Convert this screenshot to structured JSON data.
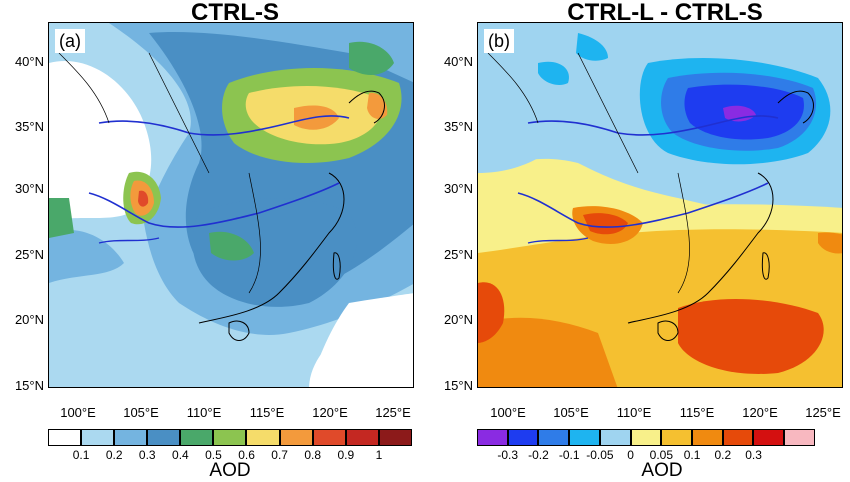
{
  "panels": [
    {
      "title": "CTRL-S",
      "label": "(a)",
      "colorbar_label": "AOD",
      "colorbar_ticks": [
        "0.1",
        "0.2",
        "0.3",
        "0.4",
        "0.5",
        "0.6",
        "0.7",
        "0.8",
        "0.9",
        "1"
      ],
      "colorbar_colors": [
        "#ffffff",
        "#abd9f0",
        "#74b4e0",
        "#4a8fc4",
        "#4aa86a",
        "#8cc450",
        "#f5dc6a",
        "#f39a3c",
        "#e04a2a",
        "#c42822",
        "#8c1a1a"
      ]
    },
    {
      "title": "CTRL-L - CTRL-S",
      "label": "(b)",
      "colorbar_label": "AOD",
      "colorbar_ticks": [
        "-0.3",
        "-0.2",
        "-0.1",
        "-0.05",
        "0",
        "0.05",
        "0.1",
        "0.2",
        "0.3"
      ],
      "colorbar_colors": [
        "#8a2be2",
        "#1e3cf0",
        "#2f7ce8",
        "#1eb4f0",
        "#9fd4f0",
        "#f8f08a",
        "#f5c030",
        "#f08a10",
        "#e64a0a",
        "#d41010",
        "#f8b8c0"
      ]
    }
  ],
  "latitude_labels": [
    "40°N",
    "35°N",
    "30°N",
    "25°N",
    "20°N",
    "15°N"
  ],
  "longitude_labels": [
    "100°E",
    "105°E",
    "110°E",
    "115°E",
    "120°E",
    "125°E"
  ]
}
